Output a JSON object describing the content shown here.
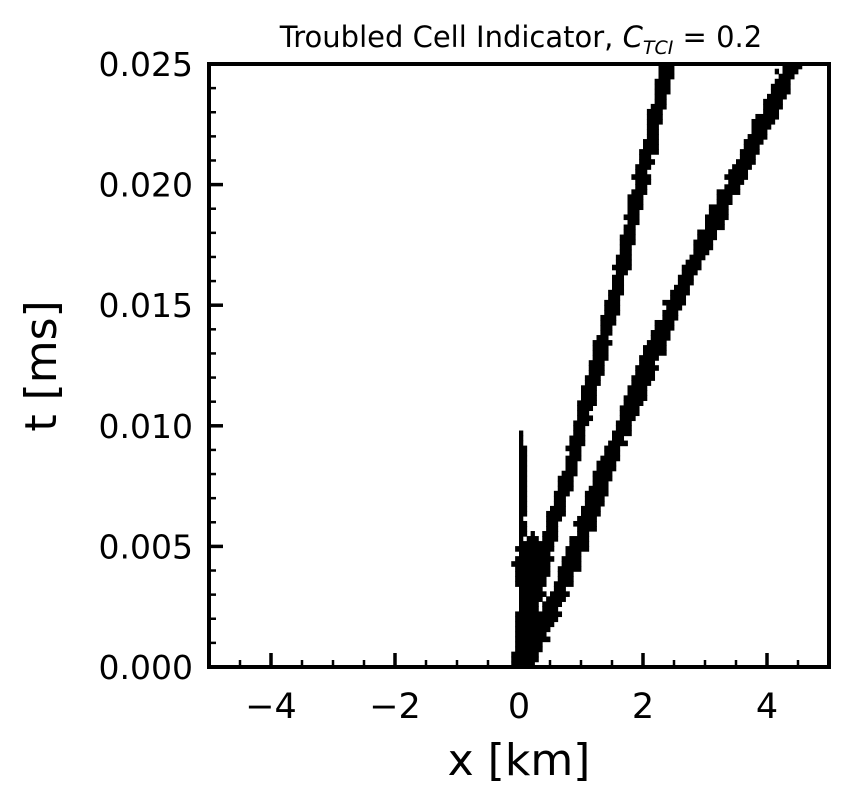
{
  "chart_data": {
    "type": "heatmap",
    "title_main": "Troubled Cell Indicator, ",
    "title_symbol": "C",
    "title_subscript": "TCI",
    "title_value": " = 0.2",
    "xlabel": "x [km]",
    "ylabel": "t [ms]",
    "xlim": [
      -5,
      5
    ],
    "ylim": [
      0,
      0.025
    ],
    "x_ticks": [
      -4,
      -2,
      0,
      2,
      4
    ],
    "x_tick_labels": [
      "−4",
      "−2",
      "0",
      "2",
      "4"
    ],
    "y_ticks": [
      0.0,
      0.005,
      0.01,
      0.015,
      0.02,
      0.025
    ],
    "y_tick_labels": [
      "0.000",
      "0.005",
      "0.010",
      "0.015",
      "0.020",
      "0.025"
    ],
    "grid": false,
    "colors": {
      "troubled": "#000000",
      "background": "#ffffff",
      "axes": "#000000"
    },
    "bands": [
      {
        "points": [
          [
            0.0,
            0.0
          ],
          [
            0.4,
            0.0045
          ],
          [
            0.9,
            0.009
          ],
          [
            1.6,
            0.016
          ],
          [
            2.4,
            0.025
          ]
        ],
        "halfwidth_km": 0.11
      },
      {
        "points": [
          [
            0.1,
            0.0
          ],
          [
            0.8,
            0.004
          ],
          [
            1.5,
            0.009
          ],
          [
            2.5,
            0.015
          ],
          [
            4.4,
            0.025
          ]
        ],
        "halfwidth_km": 0.14
      }
    ],
    "blobs": [
      {
        "x": 0.15,
        "t": 0.0015,
        "rx_km": 0.22,
        "rt_ms": 0.0015
      },
      {
        "x": 0.2,
        "t": 0.004,
        "rx_km": 0.28,
        "rt_ms": 0.0015
      },
      {
        "x": 0.05,
        "t": 0.0075,
        "rx_km": 0.06,
        "rt_ms": 0.0025
      }
    ]
  }
}
